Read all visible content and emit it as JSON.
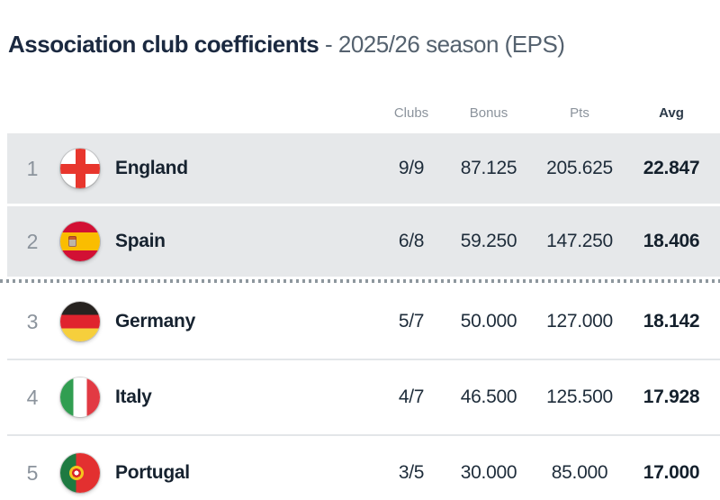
{
  "title": {
    "main": "Association club coefficients",
    "suffix": " - 2025/26 season (EPS)"
  },
  "table": {
    "headers": {
      "clubs": "Clubs",
      "bonus": "Bonus",
      "pts": "Pts",
      "avg": "Avg"
    },
    "separator_after": 2,
    "rows": [
      {
        "rank": "1",
        "country": "England",
        "flag": "england-flag",
        "clubs": "9/9",
        "bonus": "87.125",
        "pts": "205.625",
        "avg": "22.847",
        "highlighted": true
      },
      {
        "rank": "2",
        "country": "Spain",
        "flag": "spain-flag",
        "clubs": "6/8",
        "bonus": "59.250",
        "pts": "147.250",
        "avg": "18.406",
        "highlighted": true
      },
      {
        "rank": "3",
        "country": "Germany",
        "flag": "germany-flag",
        "clubs": "5/7",
        "bonus": "50.000",
        "pts": "127.000",
        "avg": "18.142",
        "highlighted": false
      },
      {
        "rank": "4",
        "country": "Italy",
        "flag": "italy-flag",
        "clubs": "4/7",
        "bonus": "46.500",
        "pts": "125.500",
        "avg": "17.928",
        "highlighted": false
      },
      {
        "rank": "5",
        "country": "Portugal",
        "flag": "portugal-flag",
        "clubs": "3/5",
        "bonus": "30.000",
        "pts": "85.000",
        "avg": "17.000",
        "highlighted": false
      }
    ]
  },
  "colors": {
    "highlight_row_bg": "#e6e8ea",
    "text_dark": "#1d2b3a",
    "text_muted": "#8b939c",
    "row_divider": "#e3e6e9",
    "cutoff_dots": "#8e979e"
  }
}
